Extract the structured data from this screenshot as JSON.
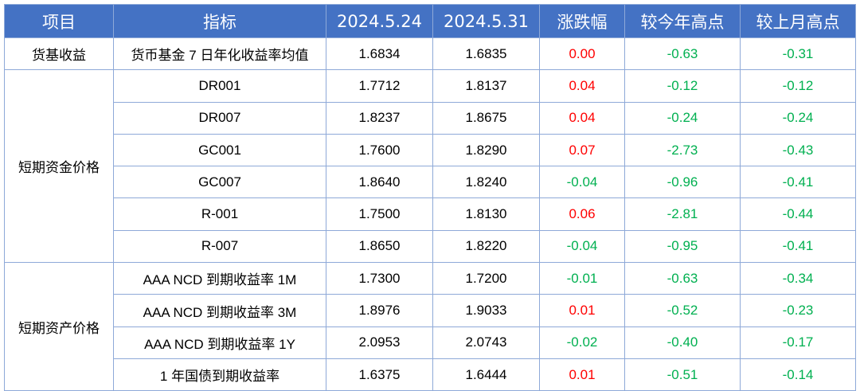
{
  "headers": [
    "项目",
    "指标",
    "2024.5.24",
    "2024.5.31",
    "涨跌幅",
    "较今年高点",
    "较上月高点"
  ],
  "colors": {
    "header_bg": "#4472c4",
    "up": "#ff0000",
    "down": "#00b050",
    "border": "#8ea9d8"
  },
  "groups": [
    {
      "category": "货基收益",
      "rows": [
        {
          "indicator": "货币基金 7 日年化收益率均值",
          "v1": "1.6834",
          "v2": "1.6835",
          "chg": "0.00",
          "chg_dir": "up",
          "vs_year": "-0.63",
          "vs_month": "-0.31"
        }
      ]
    },
    {
      "category": "短期资金价格",
      "rows": [
        {
          "indicator": "DR001",
          "v1": "1.7712",
          "v2": "1.8137",
          "chg": "0.04",
          "chg_dir": "up",
          "vs_year": "-0.12",
          "vs_month": "-0.12"
        },
        {
          "indicator": "DR007",
          "v1": "1.8237",
          "v2": "1.8675",
          "chg": "0.04",
          "chg_dir": "up",
          "vs_year": "-0.24",
          "vs_month": "-0.24"
        },
        {
          "indicator": "GC001",
          "v1": "1.7600",
          "v2": "1.8290",
          "chg": "0.07",
          "chg_dir": "up",
          "vs_year": "-2.73",
          "vs_month": "-0.43"
        },
        {
          "indicator": "GC007",
          "v1": "1.8640",
          "v2": "1.8240",
          "chg": "-0.04",
          "chg_dir": "down",
          "vs_year": "-0.96",
          "vs_month": "-0.41"
        },
        {
          "indicator": "R-001",
          "v1": "1.7500",
          "v2": "1.8130",
          "chg": "0.06",
          "chg_dir": "up",
          "vs_year": "-2.81",
          "vs_month": "-0.44"
        },
        {
          "indicator": "R-007",
          "v1": "1.8650",
          "v2": "1.8220",
          "chg": "-0.04",
          "chg_dir": "down",
          "vs_year": "-0.95",
          "vs_month": "-0.41"
        }
      ]
    },
    {
      "category": "短期资产价格",
      "rows": [
        {
          "indicator": "AAA NCD 到期收益率 1M",
          "v1": "1.7300",
          "v2": "1.7200",
          "chg": "-0.01",
          "chg_dir": "down",
          "vs_year": "-0.63",
          "vs_month": "-0.34"
        },
        {
          "indicator": "AAA NCD 到期收益率 3M",
          "v1": "1.8976",
          "v2": "1.9033",
          "chg": "0.01",
          "chg_dir": "up",
          "vs_year": "-0.52",
          "vs_month": "-0.23"
        },
        {
          "indicator": "AAA NCD 到期收益率 1Y",
          "v1": "2.0953",
          "v2": "2.0743",
          "chg": "-0.02",
          "chg_dir": "down",
          "vs_year": "-0.40",
          "vs_month": "-0.17"
        },
        {
          "indicator": "1 年国债到期收益率",
          "v1": "1.6375",
          "v2": "1.6444",
          "chg": "0.01",
          "chg_dir": "up",
          "vs_year": "-0.51",
          "vs_month": "-0.14"
        }
      ]
    }
  ]
}
